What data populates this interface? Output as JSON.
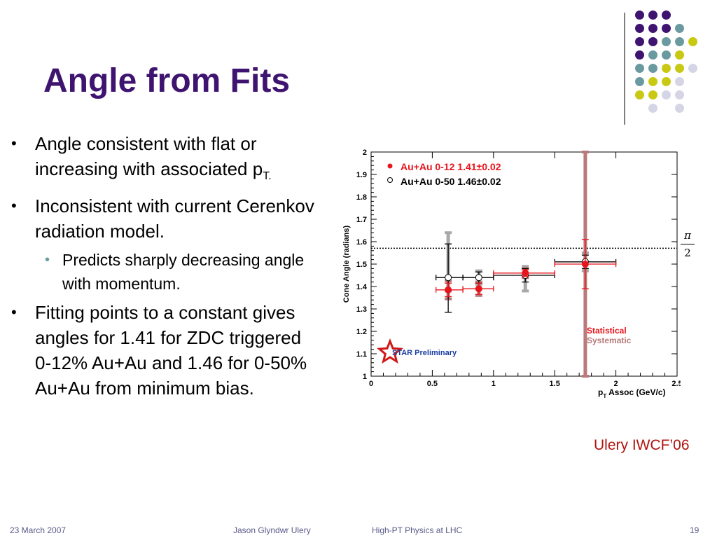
{
  "slide": {
    "title": "Angle from Fits",
    "bullets": [
      {
        "text": "Angle consistent with flat or increasing with associated p",
        "sub": "T."
      },
      {
        "text": "Inconsistent with current Cerenkov radiation model."
      },
      {
        "text": "Predicts sharply decreasing angle with momentum.",
        "level": 2
      },
      {
        "text": "Fitting points to a constant gives angles for 1.41 for ZDC triggered 0-12% Au+Au and 1.46 for 0-50% Au+Au from minimum bias."
      }
    ],
    "citation": "Ulery IWCF’06"
  },
  "footer": {
    "date": "23 March 2007",
    "author": "Jason Glyndwr Ulery",
    "event": "High-PT Physics at LHC",
    "page": "19"
  },
  "decor": {
    "dot_colors": {
      "purple": "#3f1470",
      "teal": "#6a9aa0",
      "yellow": "#c9c914",
      "lavender": "#d5d5e6"
    }
  },
  "chart_data": {
    "type": "scatter",
    "ylabel": "Cone Angle (radians)",
    "xlabel_prefix": "p",
    "xlabel_sub": "T",
    "xlabel_rest": "Assoc (GeV/c)",
    "xlim": [
      0,
      2.5
    ],
    "ylim": [
      1,
      2
    ],
    "x_ticks": [
      "0",
      "0.5",
      "1",
      "1.5",
      "2",
      "2.5"
    ],
    "y_ticks": [
      "1",
      "1.1",
      "1.2",
      "1.3",
      "1.4",
      "1.5",
      "1.6",
      "1.7",
      "1.8",
      "1.9",
      "2"
    ],
    "reference_line": {
      "y": 1.5708,
      "label_num": "π",
      "label_den": "2"
    },
    "legend": [
      {
        "label": "Au+Au 0-12 1.41±0.02",
        "color": "#e8141c",
        "marker": "filled-circle"
      },
      {
        "label": "Au+Au 0-50 1.46±0.02",
        "color": "#000000",
        "marker": "open-circle"
      }
    ],
    "error_legend": [
      {
        "label": "Statistical",
        "color": "#e8141c"
      },
      {
        "label": "Systematic",
        "color": "#b87a7a"
      }
    ],
    "watermark": "STAR Preliminary",
    "series": [
      {
        "name": "Au+Au 0-12 1.41±0.02",
        "color": "#e8141c",
        "marker": "filled",
        "points": [
          {
            "x": 0.63,
            "y": 1.385,
            "xerr": [
              0.53,
              0.75
            ],
            "stat": [
              1.355,
              1.415
            ],
            "sys": [
              1.345,
              1.425
            ]
          },
          {
            "x": 0.88,
            "y": 1.39,
            "xerr": [
              0.75,
              1.0
            ],
            "stat": [
              1.365,
              1.415
            ],
            "sys": [
              1.36,
              1.42
            ]
          },
          {
            "x": 1.26,
            "y": 1.46,
            "xerr": [
              1.0,
              1.5
            ],
            "stat": [
              1.445,
              1.475
            ],
            "sys": [
              1.44,
              1.48
            ]
          },
          {
            "x": 1.75,
            "y": 1.5,
            "xerr": [
              1.5,
              2.0
            ],
            "stat": [
              1.39,
              1.61
            ],
            "sys": [
              1.0,
              2.0
            ]
          }
        ]
      },
      {
        "name": "Au+Au 0-50 1.46±0.02",
        "color": "#000000",
        "marker": "open",
        "points": [
          {
            "x": 0.63,
            "y": 1.44,
            "xerr": [
              0.53,
              0.75
            ],
            "stat": [
              1.285,
              1.59
            ],
            "sys": [
              1.38,
              1.64
            ]
          },
          {
            "x": 0.88,
            "y": 1.44,
            "xerr": [
              0.75,
              1.0
            ],
            "stat": [
              1.415,
              1.465
            ],
            "sys": [
              1.41,
              1.47
            ]
          },
          {
            "x": 1.26,
            "y": 1.45,
            "xerr": [
              1.0,
              1.5
            ],
            "stat": [
              1.42,
              1.48
            ],
            "sys": [
              1.38,
              1.49
            ]
          },
          {
            "x": 1.75,
            "y": 1.51,
            "xerr": [
              1.5,
              2.0
            ],
            "stat": [
              1.48,
              1.54
            ],
            "sys": [
              1.47,
              1.55
            ]
          }
        ]
      }
    ]
  }
}
